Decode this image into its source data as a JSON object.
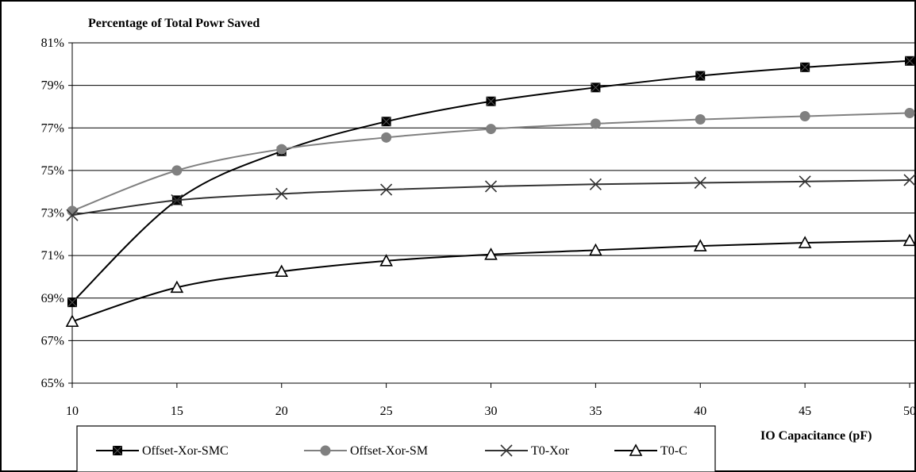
{
  "chart_data": {
    "type": "line",
    "title": "Percentage of Total Powr Saved",
    "xlabel": "IO Capacitance (pF)",
    "ylabel": "",
    "x": [
      10,
      15,
      20,
      25,
      30,
      35,
      40,
      45,
      50
    ],
    "x_tick_labels": [
      "10",
      "15",
      "20",
      "25",
      "30",
      "35",
      "40",
      "45",
      "50"
    ],
    "y_tick_labels": [
      "65%",
      "67%",
      "69%",
      "71%",
      "73%",
      "75%",
      "77%",
      "79%",
      "81%"
    ],
    "xlim": [
      10,
      50
    ],
    "ylim": [
      65,
      81
    ],
    "y_unit": "%",
    "grid": "horizontal",
    "legend_position": "bottom",
    "series": [
      {
        "name": "Offset-Xor-SMC",
        "color": "#000000",
        "marker": "filled-square-with-x",
        "values": [
          68.8,
          73.6,
          75.9,
          77.3,
          78.25,
          78.9,
          79.45,
          79.85,
          80.15
        ]
      },
      {
        "name": "Offset-Xor-SM",
        "color": "#808080",
        "marker": "filled-circle",
        "values": [
          73.1,
          75.0,
          76.0,
          76.55,
          76.95,
          77.2,
          77.4,
          77.55,
          77.7
        ]
      },
      {
        "name": "T0-Xor",
        "color": "#333333",
        "marker": "x",
        "values": [
          72.9,
          73.6,
          73.9,
          74.1,
          74.25,
          74.35,
          74.42,
          74.48,
          74.55
        ]
      },
      {
        "name": "T0-C",
        "color": "#000000",
        "marker": "open-triangle",
        "values": [
          67.9,
          69.5,
          70.25,
          70.75,
          71.05,
          71.25,
          71.45,
          71.6,
          71.7
        ]
      }
    ]
  }
}
